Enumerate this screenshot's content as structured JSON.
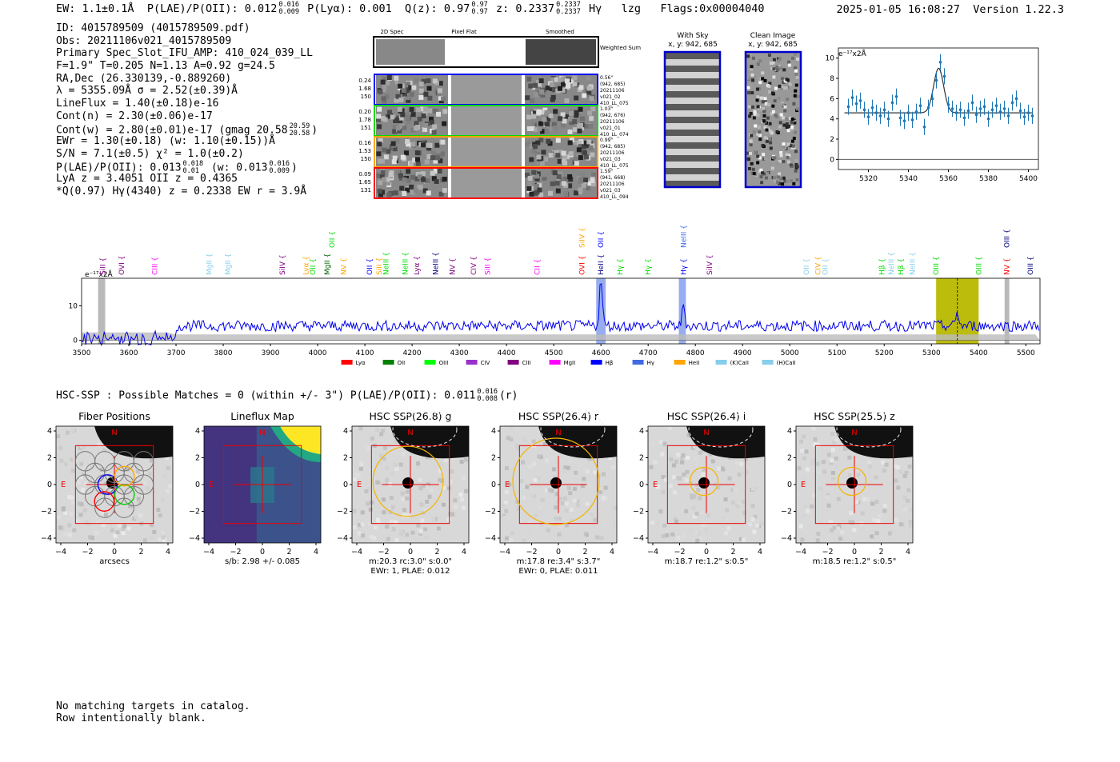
{
  "header": {
    "ew": "EW: 1.1±0.1Å",
    "plae_label": "P(LAE)/P(OII): 0.012",
    "plae_hi": "0.016",
    "plae_lo": "0.009",
    "plya": "P(Lyα): 0.001",
    "qz_label": "Q(z): 0.97",
    "qz_hi": "0.97",
    "qz_lo": "0.97",
    "z_label": "z: 0.2337",
    "z_hi": "0.2337",
    "z_lo": "0.2337",
    "line": "Hγ",
    "survey": "lzg",
    "flags": "Flags:0x00004040",
    "datetime": "2025-01-05 16:08:27",
    "version": "Version 1.22.3"
  },
  "info": {
    "id": "ID: 4015789509 (4015789509.pdf)",
    "obs": "Obs: 20211106v021_4015789509",
    "primary": "Primary Spec_Slot_IFU_AMP: 410_024_039_LL",
    "fwhm": "F=1.9\"  T=0.205  N=1.13  A=0.92  g=24.5",
    "radec": "RA,Dec (26.330139,-0.889260)",
    "lambda": "λ = 5355.09Å  σ = 2.52(±0.39)Å",
    "lineflux": "LineFlux = 1.40(±0.18)e-16",
    "contn": "Cont(n) = 2.30(±0.06)e-17",
    "contw": "Cont(w) = 2.80(±0.01)e-17 (gmag 20.58",
    "gmag_hi": "20.59",
    "gmag_lo": "20.58",
    "ewr": "EWr = 1.30(±0.18) (w: 1.10(±0.15))Å",
    "sn": "S/N = 7.1(±0.5)  χ² = 1.0(±0.2)",
    "plae": "P(LAE)/P(OII): 0.013",
    "plae_hi": "0.018",
    "plae_lo": "0.01",
    "plae_w": "(w: 0.013",
    "plae_w_hi": "0.016",
    "plae_w_lo": "0.009",
    "lya": "LyA z = 3.4051   OII z = 0.4365",
    "q": "*Q(0.97) Hγ(4340) z = 0.2338  EW r = 3.9Å"
  },
  "cutouts": {
    "headers": [
      "2D Spec",
      "Pixel Flat",
      "Smoothed"
    ],
    "weighted_sum": "Weighted Sum",
    "rows": [
      {
        "vals": [
          "0.24",
          "1.68",
          "150"
        ],
        "side": [
          "0.56\"",
          "(942, 685)",
          "20211106",
          "v021_02",
          "410_LL_075"
        ],
        "color": "#0000ff"
      },
      {
        "vals": [
          "0.20",
          "1.78",
          "151"
        ],
        "side": [
          "1.03\"",
          "(942, 676)",
          "20211106",
          "v021_01",
          "410_LL_074"
        ],
        "color": "#00dd00"
      },
      {
        "vals": [
          "0.16",
          "1.53",
          "150"
        ],
        "side": [
          "0.99\"",
          "(942, 685)",
          "20211106",
          "v021_03",
          "410_LL_075"
        ],
        "color": "#ffa500"
      },
      {
        "vals": [
          "0.09",
          "1.65",
          "131"
        ],
        "side": [
          "1.59\"",
          "(941, 668)",
          "20211106",
          "v021_03",
          "410_LL_094"
        ],
        "color": "#ff0000"
      }
    ]
  },
  "sky_panels": {
    "with_sky_title": "With Sky",
    "with_sky_coords": "x, y: 942, 685",
    "clean_title": "Clean Image",
    "clean_coords": "x, y: 942, 685"
  },
  "zoom_plot": {
    "ylabel": "e⁻¹⁷x2Å",
    "xticks": [
      "5320",
      "5340",
      "5360",
      "5380",
      "5400"
    ],
    "yticks": [
      "0",
      "2",
      "4",
      "6",
      "8",
      "10"
    ]
  },
  "chart_data": [
    {
      "type": "scatter",
      "title": "",
      "xlabel": "",
      "ylabel": "e-17 x2Å",
      "xlim": [
        5305,
        5405
      ],
      "ylim": [
        -1,
        11
      ],
      "continuum": 4.6,
      "gaussian": {
        "center": 5355.1,
        "amplitude": 4.4,
        "sigma": 2.5
      },
      "x": [
        5310,
        5312,
        5314,
        5316,
        5318,
        5320,
        5322,
        5324,
        5326,
        5328,
        5330,
        5332,
        5334,
        5336,
        5338,
        5340,
        5342,
        5344,
        5346,
        5348,
        5350,
        5352,
        5354,
        5356,
        5358,
        5360,
        5362,
        5364,
        5366,
        5368,
        5370,
        5372,
        5374,
        5376,
        5378,
        5380,
        5382,
        5384,
        5386,
        5388,
        5390,
        5392,
        5394,
        5396,
        5398,
        5400,
        5402
      ],
      "y": [
        5.2,
        6.1,
        5.5,
        5.8,
        4.9,
        4.2,
        5.1,
        4.6,
        4.3,
        4.9,
        4.0,
        5.6,
        6.2,
        4.1,
        3.8,
        4.6,
        3.9,
        4.7,
        5.3,
        3.2,
        5.1,
        6.0,
        7.8,
        9.6,
        8.2,
        5.4,
        5.0,
        4.6,
        4.9,
        4.1,
        4.8,
        5.6,
        4.4,
        5.0,
        5.2,
        4.0,
        4.9,
        5.3,
        4.7,
        5.0,
        4.3,
        5.6,
        6.0,
        4.8,
        4.2,
        4.6,
        4.3
      ]
    },
    {
      "type": "line",
      "title": "",
      "xlabel": "",
      "ylabel": "e-17 x2Å",
      "xlim": [
        3500,
        5530
      ],
      "ylim": [
        -1,
        18
      ],
      "xticks": [
        3500,
        3600,
        3700,
        3800,
        3900,
        4000,
        4100,
        4200,
        4300,
        4400,
        4500,
        4600,
        4700,
        4800,
        4900,
        5000,
        5100,
        5200,
        5300,
        5400,
        5500
      ],
      "yticks": [
        0,
        10
      ],
      "flux_baseline": 4.2,
      "emission_lines": [
        {
          "wave": 4600,
          "height": 14
        },
        {
          "wave": 4775,
          "height": 6
        },
        {
          "wave": 5355,
          "height": 4
        }
      ],
      "highlights": [
        {
          "range": [
            4590,
            4610
          ],
          "color": "#4169e1"
        },
        {
          "range": [
            4765,
            4780
          ],
          "color": "#4169e1"
        },
        {
          "range": [
            5310,
            5400
          ],
          "color": "#b8b800"
        },
        {
          "range": [
            5455,
            5465
          ],
          "color": "#808080"
        },
        {
          "range": [
            3535,
            3550
          ],
          "color": "#808080"
        }
      ],
      "line_labels": [
        {
          "label": "SiII",
          "wave": 3545,
          "color": "#800080",
          "tier": 0
        },
        {
          "label": "OVI",
          "wave": 3585,
          "color": "#800080",
          "tier": 0
        },
        {
          "label": "CIII",
          "wave": 3655,
          "color": "#ff00ff",
          "tier": 0
        },
        {
          "label": "MgII",
          "wave": 3770,
          "color": "#87ceeb",
          "tier": 0
        },
        {
          "label": "MgII",
          "wave": 3810,
          "color": "#87ceeb",
          "tier": 0
        },
        {
          "label": "SiIV",
          "wave": 3925,
          "color": "#800080",
          "tier": 0
        },
        {
          "label": "Lyα",
          "wave": 3975,
          "color": "#ffa500",
          "tier": 0
        },
        {
          "label": "OII",
          "wave": 3990,
          "color": "#00dd00",
          "tier": 0
        },
        {
          "label": "MgII",
          "wave": 4020,
          "color": "#006400",
          "tier": 0
        },
        {
          "label": "NV",
          "wave": 4055,
          "color": "#ffa500",
          "tier": 0
        },
        {
          "label": "OII",
          "wave": 4110,
          "color": "#0000ff",
          "tier": 0
        },
        {
          "label": "SiII",
          "wave": 4130,
          "color": "#ffa500",
          "tier": 0
        },
        {
          "label": "NeIII",
          "wave": 4145,
          "color": "#00dd00",
          "tier": 0
        },
        {
          "label": "NeIII",
          "wave": 4185,
          "color": "#00dd00",
          "tier": 0
        },
        {
          "label": "Lyα",
          "wave": 4210,
          "color": "#800080",
          "tier": 0
        },
        {
          "label": "NeIII",
          "wave": 4250,
          "color": "#000080",
          "tier": 0
        },
        {
          "label": "NV",
          "wave": 4285,
          "color": "#800080",
          "tier": 0
        },
        {
          "label": "CIV",
          "wave": 4330,
          "color": "#800080",
          "tier": 0
        },
        {
          "label": "SiII",
          "wave": 4360,
          "color": "#ff00ff",
          "tier": 0
        },
        {
          "label": "CII",
          "wave": 4465,
          "color": "#ff00ff",
          "tier": 0
        },
        {
          "label": "OVI",
          "wave": 4560,
          "color": "#ff0000",
          "tier": 0
        },
        {
          "label": "HeII",
          "wave": 4600,
          "color": "#000080",
          "tier": 0
        },
        {
          "label": "Hγ",
          "wave": 4640,
          "color": "#00dd00",
          "tier": 0
        },
        {
          "label": "Hγ",
          "wave": 4700,
          "color": "#00dd00",
          "tier": 0
        },
        {
          "label": "Hγ",
          "wave": 4775,
          "color": "#0000ff",
          "tier": 0
        },
        {
          "label": "SiIV",
          "wave": 4830,
          "color": "#800080",
          "tier": 0
        },
        {
          "label": "OII",
          "wave": 5035,
          "color": "#87ceeb",
          "tier": 0
        },
        {
          "label": "CIV",
          "wave": 5060,
          "color": "#ffa500",
          "tier": 0
        },
        {
          "label": "OII",
          "wave": 5075,
          "color": "#87ceeb",
          "tier": 0
        },
        {
          "label": "Hβ",
          "wave": 5195,
          "color": "#00dd00",
          "tier": 0
        },
        {
          "label": "NeIII",
          "wave": 5215,
          "color": "#87ceeb",
          "tier": 0
        },
        {
          "label": "Hβ",
          "wave": 5235,
          "color": "#00dd00",
          "tier": 0
        },
        {
          "label": "NeIII",
          "wave": 5260,
          "color": "#87ceeb",
          "tier": 0
        },
        {
          "label": "OIII",
          "wave": 5310,
          "color": "#00dd00",
          "tier": 0
        },
        {
          "label": "OIII",
          "wave": 5400,
          "color": "#00dd00",
          "tier": 0
        },
        {
          "label": "NV",
          "wave": 5460,
          "color": "#ff0000",
          "tier": 0
        },
        {
          "label": "OIII",
          "wave": 5510,
          "color": "#000080",
          "tier": 0
        },
        {
          "label": "OII",
          "wave": 4030,
          "color": "#00dd00",
          "tier": 1
        },
        {
          "label": "SiIV",
          "wave": 4560,
          "color": "#ffa500",
          "tier": 1
        },
        {
          "label": "OII",
          "wave": 4600,
          "color": "#0000ff",
          "tier": 1
        },
        {
          "label": "NeIII",
          "wave": 4775,
          "color": "#4169e1",
          "tier": 1
        },
        {
          "label": "OIII",
          "wave": 5460,
          "color": "#000080",
          "tier": 1
        }
      ],
      "legend": [
        {
          "label": "Lyα",
          "color": "#ff0000"
        },
        {
          "label": "OII",
          "color": "#008000"
        },
        {
          "label": "OIII",
          "color": "#00ff00"
        },
        {
          "label": "CIV",
          "color": "#9932cc"
        },
        {
          "label": "CIII",
          "color": "#800080"
        },
        {
          "label": "MgII",
          "color": "#ff00ff"
        },
        {
          "label": "Hβ",
          "color": "#0000ff"
        },
        {
          "label": "Hγ",
          "color": "#4169e1"
        },
        {
          "label": "HeII",
          "color": "#ffa500"
        },
        {
          "label": "(K)CaII",
          "color": "#87ceeb"
        },
        {
          "label": "(H)CaII",
          "color": "#87ceeb"
        }
      ]
    }
  ],
  "spectrum_ylabel": "e⁻¹⁷x2Å",
  "hsc": {
    "summary": "HSC-SSP : Possible Matches = 0 (within +/- 3\")  P(LAE)/P(OII): 0.011",
    "summary_hi": "0.016",
    "summary_lo": "0.008",
    "summary_band": "(r)"
  },
  "thumbs": [
    {
      "title": "Fiber Positions",
      "cap1": "arcsecs",
      "cap2": ""
    },
    {
      "title": "Lineflux Map",
      "cap1": "s/b: 2.98 +/- 0.085",
      "cap2": ""
    },
    {
      "title": "HSC SSP(26.8) g",
      "cap1": "m:20.3 rc:3.0\"  s:0.0\"",
      "cap2": "EWr: 1, PLAE: 0.012"
    },
    {
      "title": "HSC SSP(26.4) r",
      "cap1": "m:17.8  re:3.4\"  s:3.7\"",
      "cap2": "EWr: 0, PLAE: 0.011"
    },
    {
      "title": "HSC SSP(26.4) i",
      "cap1": "m:18.7  re:1.2\"  s:0.5\"",
      "cap2": ""
    },
    {
      "title": "HSC SSP(25.5) z",
      "cap1": "m:18.5  re:1.2\"  s:0.5\"",
      "cap2": ""
    }
  ],
  "thumb_axis": {
    "ticks": [
      "4",
      "2",
      "0",
      "−2",
      "−4"
    ],
    "xticks": [
      "−4",
      "−2",
      "0",
      "2",
      "4"
    ],
    "north": "N",
    "east": "E"
  },
  "footer": {
    "line1": "No matching targets in catalog.",
    "line2": "Row intentionally blank."
  }
}
